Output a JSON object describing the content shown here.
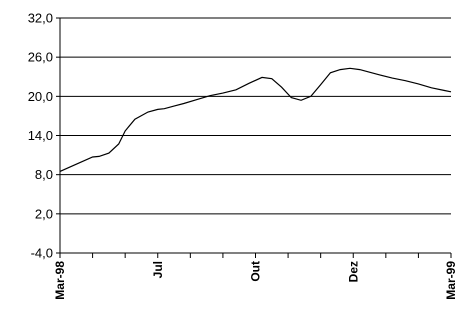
{
  "chart_data": {
    "type": "line",
    "title": "",
    "xlabel": "",
    "ylabel": "",
    "ylim": [
      -4.0,
      32.0
    ],
    "yticks": [
      "32,0",
      "26,0",
      "20,0",
      "14,0",
      "8,0",
      "2,0",
      "-4,0"
    ],
    "ytick_values": [
      32,
      26,
      20,
      14,
      8,
      2,
      -4
    ],
    "xlim": [
      0,
      12
    ],
    "xticks": [
      {
        "label": "Mar-98",
        "pos": 0
      },
      {
        "label": "Jul",
        "pos": 3
      },
      {
        "label": "Out",
        "pos": 6
      },
      {
        "label": "Dez",
        "pos": 9
      },
      {
        "label": "Mar-99",
        "pos": 12
      }
    ],
    "grid": true,
    "legend": "none",
    "line_color": "#000000",
    "series": [
      {
        "x": [
          0,
          0.5,
          1,
          1.2,
          1.5,
          1.8,
          2.0,
          2.3,
          2.7,
          3.0,
          3.2,
          3.5,
          3.8,
          4.2,
          4.6,
          5.0,
          5.4,
          5.8,
          6.2,
          6.5,
          6.8,
          7.1,
          7.4,
          7.7,
          8.0,
          8.3,
          8.6,
          8.9,
          9.2,
          9.5,
          9.8,
          10.2,
          10.6,
          11.0,
          11.4,
          11.8,
          12.0
        ],
        "y": [
          8.5,
          9.6,
          10.7,
          10.8,
          11.3,
          12.7,
          14.7,
          16.5,
          17.6,
          18.0,
          18.1,
          18.5,
          18.9,
          19.5,
          20.1,
          20.5,
          21.0,
          22.0,
          22.9,
          22.7,
          21.4,
          19.8,
          19.4,
          20.0,
          21.8,
          23.6,
          24.1,
          24.3,
          24.1,
          23.7,
          23.3,
          22.8,
          22.4,
          21.9,
          21.3,
          20.9,
          20.7
        ]
      }
    ]
  }
}
